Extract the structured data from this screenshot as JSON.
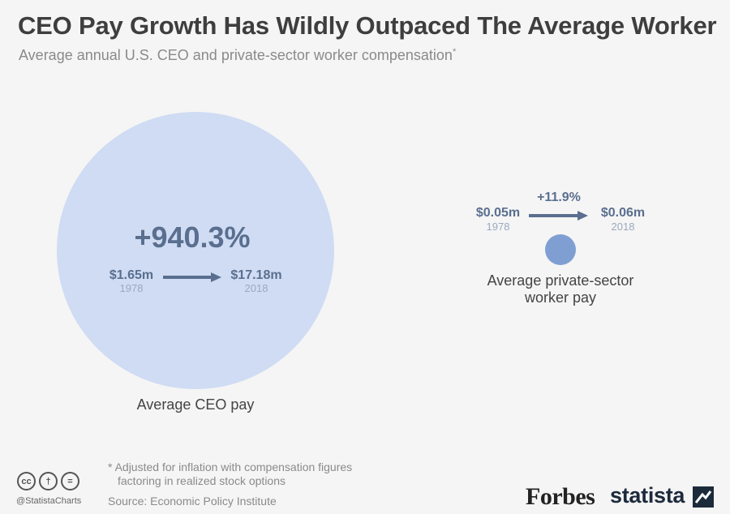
{
  "header": {
    "title": "CEO Pay Growth Has Wildly Outpaced The Average Worker",
    "subtitle": "Average annual U.S. CEO and private-sector worker compensation",
    "subtitle_mark": "*"
  },
  "chart_data": {
    "type": "bubble",
    "unit": "m",
    "series": [
      {
        "name": "Average CEO pay",
        "value_1978": 1.65,
        "value_2018": 17.18,
        "value_1978_label": "$1.65m",
        "value_2018_label": "$17.18m",
        "year_start": "1978",
        "year_end": "2018",
        "change_label": "+940.3%",
        "change_pct": 940.3,
        "color": "#cfdcf3"
      },
      {
        "name": "Average private-sector worker pay",
        "value_1978": 0.05,
        "value_2018": 0.06,
        "value_1978_label": "$0.05m",
        "value_2018_label": "$0.06m",
        "year_start": "1978",
        "year_end": "2018",
        "change_label": "+11.9%",
        "change_pct": 11.9,
        "color": "#7f9fd3"
      }
    ]
  },
  "colors": {
    "value_text": "#5a6f8f",
    "year_text": "#9aaac0",
    "arrow": "#5a6f8f"
  },
  "footer": {
    "note_line1": "* Adjusted for inflation with compensation figures",
    "note_line2": "factoring in realized stock options",
    "source": "Source: Economic Policy Institute",
    "handle": "@StatistaCharts",
    "forbes": "Forbes",
    "statista": "statista",
    "cc_icons": [
      "cc-icon",
      "by-icon",
      "nd-icon"
    ],
    "cc_glyphs": [
      "cc",
      "†",
      "="
    ]
  }
}
